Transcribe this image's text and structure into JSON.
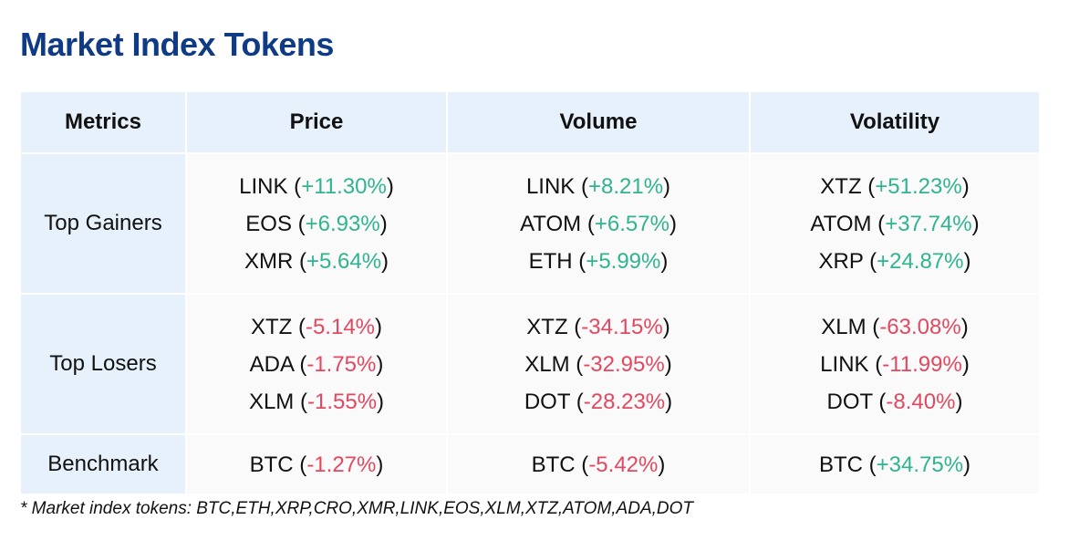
{
  "title": "Market Index Tokens",
  "headers": [
    "Metrics",
    "Price",
    "Volume",
    "Volatility"
  ],
  "rows": [
    {
      "metric": "Top Gainers",
      "cells": [
        [
          {
            "token": "LINK",
            "change": "+11.30%",
            "dir": "pos"
          },
          {
            "token": "EOS",
            "change": "+6.93%",
            "dir": "pos"
          },
          {
            "token": "XMR",
            "change": "+5.64%",
            "dir": "pos"
          }
        ],
        [
          {
            "token": "LINK",
            "change": "+8.21%",
            "dir": "pos"
          },
          {
            "token": "ATOM",
            "change": "+6.57%",
            "dir": "pos"
          },
          {
            "token": "ETH",
            "change": "+5.99%",
            "dir": "pos"
          }
        ],
        [
          {
            "token": "XTZ",
            "change": "+51.23%",
            "dir": "pos"
          },
          {
            "token": "ATOM",
            "change": "+37.74%",
            "dir": "pos"
          },
          {
            "token": "XRP",
            "change": "+24.87%",
            "dir": "pos"
          }
        ]
      ]
    },
    {
      "metric": "Top Losers",
      "cells": [
        [
          {
            "token": "XTZ",
            "change": "-5.14%",
            "dir": "neg"
          },
          {
            "token": "ADA",
            "change": "-1.75%",
            "dir": "neg"
          },
          {
            "token": "XLM",
            "change": "-1.55%",
            "dir": "neg"
          }
        ],
        [
          {
            "token": "XTZ",
            "change": "-34.15%",
            "dir": "neg"
          },
          {
            "token": "XLM",
            "change": "-32.95%",
            "dir": "neg"
          },
          {
            "token": "DOT",
            "change": "-28.23%",
            "dir": "neg"
          }
        ],
        [
          {
            "token": "XLM",
            "change": "-63.08%",
            "dir": "neg"
          },
          {
            "token": "LINK",
            "change": "-11.99%",
            "dir": "neg"
          },
          {
            "token": "DOT",
            "change": "-8.40%",
            "dir": "neg"
          }
        ]
      ]
    },
    {
      "metric": "Benchmark",
      "cells": [
        [
          {
            "token": "BTC",
            "change": "-1.27%",
            "dir": "neg"
          }
        ],
        [
          {
            "token": "BTC",
            "change": "-5.42%",
            "dir": "neg"
          }
        ],
        [
          {
            "token": "BTC",
            "change": "+34.75%",
            "dir": "pos"
          }
        ]
      ]
    }
  ],
  "footnote": "* Market index tokens: BTC,ETH,XRP,CRO,XMR,LINK,EOS,XLM,XTZ,ATOM,ADA,DOT",
  "colors": {
    "title": "#0e3a86",
    "positive": "#2fb48f",
    "negative": "#e2485f",
    "header_bg": "#e6f1fb"
  }
}
